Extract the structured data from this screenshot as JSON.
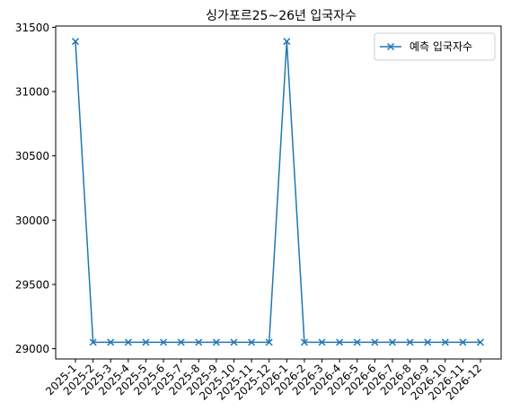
{
  "chart_data": {
    "type": "line",
    "title": "싱가포르25~26년 입국자수",
    "xlabel": "",
    "ylabel": "",
    "categories": [
      "2025-1",
      "2025-2",
      "2025-3",
      "2025-4",
      "2025-5",
      "2025-6",
      "2025-7",
      "2025-8",
      "2025-9",
      "2025-10",
      "2025-11",
      "2025-12",
      "2026-1",
      "2026-2",
      "2026-3",
      "2026-4",
      "2026-5",
      "2026-6",
      "2026-7",
      "2026-8",
      "2026-9",
      "2026-10",
      "2026-11",
      "2026-12"
    ],
    "series": [
      {
        "name": "예측 입국자수",
        "values": [
          31390,
          29050,
          29050,
          29050,
          29050,
          29050,
          29050,
          29050,
          29050,
          29050,
          29050,
          29050,
          31390,
          29050,
          29050,
          29050,
          29050,
          29050,
          29050,
          29050,
          29050,
          29050,
          29050,
          29050
        ],
        "marker": "x",
        "color": "#1f77b4"
      }
    ],
    "ylim": [
      28920,
      31510
    ],
    "yticks": [
      29000,
      29500,
      30000,
      30500,
      31000,
      31500
    ],
    "legend_position": "top-right",
    "grid": false
  }
}
